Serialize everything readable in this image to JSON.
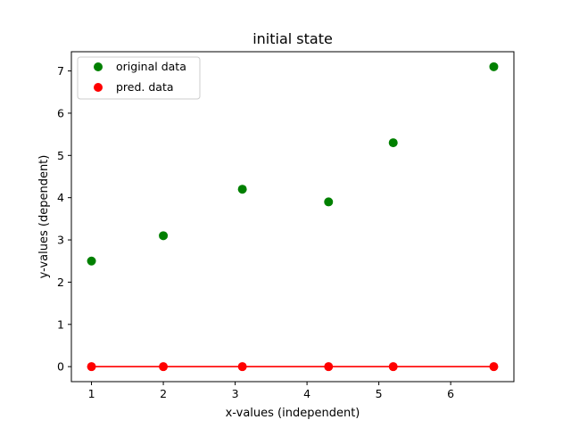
{
  "chart_data": {
    "type": "scatter",
    "title": "initial state",
    "xlabel": "x-values (independent)",
    "ylabel": "y-values (dependent)",
    "xlim": [
      0.72,
      6.88
    ],
    "ylim": [
      -0.355,
      7.455
    ],
    "xticks": [
      1,
      2,
      3,
      4,
      5,
      6
    ],
    "yticks": [
      0,
      1,
      2,
      3,
      4,
      5,
      6,
      7
    ],
    "grid": false,
    "legend": "top-left",
    "series": [
      {
        "name": "original data",
        "kind": "scatter",
        "color": "#008000",
        "x": [
          1.0,
          2.0,
          3.1,
          4.3,
          5.2,
          6.6
        ],
        "y": [
          2.5,
          3.1,
          4.2,
          3.9,
          5.3,
          7.1
        ]
      },
      {
        "name": "pred. data",
        "kind": "scatter",
        "color": "#ff0000",
        "x": [
          1.0,
          2.0,
          3.1,
          4.3,
          5.2,
          6.6
        ],
        "y": [
          0,
          0,
          0,
          0,
          0,
          0
        ]
      }
    ],
    "line": {
      "color": "#ff0000",
      "x": [
        1.0,
        2.0,
        3.1,
        4.3,
        5.2,
        6.6
      ],
      "y": [
        0,
        0,
        0,
        0,
        0,
        0
      ]
    }
  }
}
